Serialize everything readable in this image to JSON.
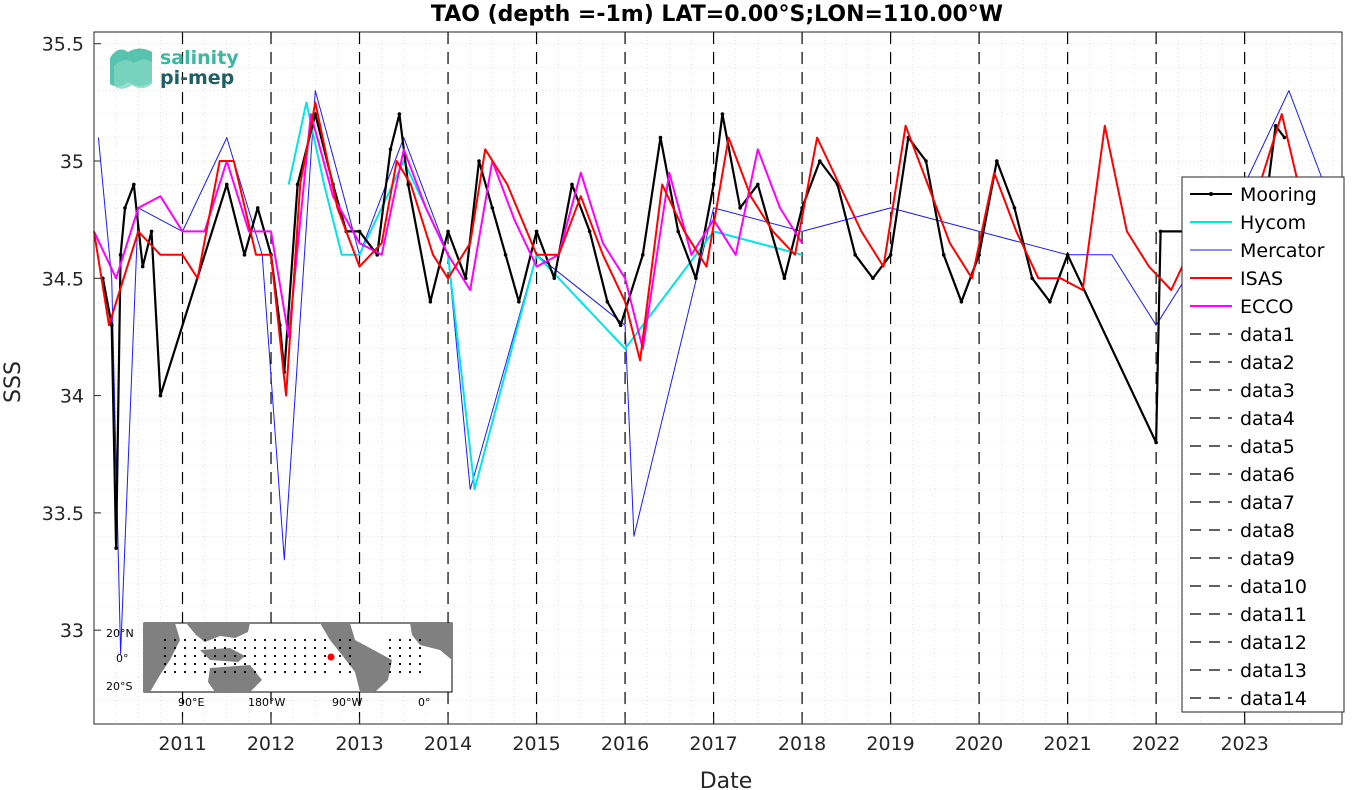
{
  "chart_data": {
    "type": "line",
    "title": "TAO (depth =-1m) LAT=0.00°S;LON=110.00°W",
    "xlabel": "Date",
    "ylabel": "SSS",
    "xlim": [
      2010.0,
      2024.1
    ],
    "ylim": [
      32.6,
      35.55
    ],
    "x_ticks": [
      2011,
      2012,
      2013,
      2014,
      2015,
      2016,
      2017,
      2018,
      2019,
      2020,
      2021,
      2022,
      2023
    ],
    "x_tick_labels": [
      "2011",
      "2012",
      "2013",
      "2014",
      "2015",
      "2016",
      "2017",
      "2018",
      "2019",
      "2020",
      "2021",
      "2022",
      "2023"
    ],
    "y_ticks": [
      33,
      33.5,
      34,
      34.5,
      35,
      35.5
    ],
    "y_tick_labels": [
      "33",
      "33.5",
      "34",
      "34.5",
      "35",
      "35.5"
    ],
    "grid": true,
    "legend_position": "right",
    "vertical_dashed_lines_at": [
      2011,
      2012,
      2013,
      2014,
      2015,
      2016,
      2017,
      2018,
      2019,
      2020,
      2021,
      2022,
      2023
    ],
    "series": [
      {
        "name": "Mooring",
        "color": "#000000",
        "style": "solid-dots",
        "x": [
          2010.1,
          2010.2,
          2010.25,
          2010.3,
          2010.35,
          2010.45,
          2010.55,
          2010.65,
          2010.75,
          2011.5,
          2011.7,
          2011.85,
          2012.0,
          2012.1,
          2012.15,
          2012.3,
          2012.5,
          2012.7,
          2012.85,
          2013.0,
          2013.2,
          2013.35,
          2013.45,
          2013.55,
          2013.8,
          2014.0,
          2014.2,
          2014.35,
          2014.5,
          2014.65,
          2014.8,
          2015.0,
          2015.2,
          2015.4,
          2015.6,
          2015.8,
          2015.95,
          2016.2,
          2016.4,
          2016.6,
          2016.8,
          2017.0,
          2017.1,
          2017.3,
          2017.5,
          2017.8,
          2018.0,
          2018.2,
          2018.4,
          2018.6,
          2018.8,
          2019.0,
          2019.2,
          2019.4,
          2019.6,
          2019.8,
          2020.0,
          2020.2,
          2020.4,
          2020.6,
          2020.8,
          2021.0,
          2022.0,
          2022.05,
          2023.2,
          2023.35,
          2023.45
        ],
        "y": [
          34.5,
          34.3,
          33.35,
          34.6,
          34.8,
          34.9,
          34.55,
          34.7,
          34.0,
          34.9,
          34.6,
          34.8,
          34.6,
          34.3,
          34.1,
          34.9,
          35.2,
          34.9,
          34.7,
          34.7,
          34.6,
          35.05,
          35.2,
          34.9,
          34.4,
          34.7,
          34.5,
          35.0,
          34.8,
          34.6,
          34.4,
          34.7,
          34.5,
          34.9,
          34.7,
          34.4,
          34.3,
          34.6,
          35.1,
          34.7,
          34.5,
          34.9,
          35.2,
          34.8,
          34.9,
          34.5,
          34.8,
          35.0,
          34.9,
          34.6,
          34.5,
          34.6,
          35.1,
          35.0,
          34.6,
          34.4,
          34.6,
          35.0,
          34.8,
          34.5,
          34.4,
          34.6,
          33.8,
          34.7,
          34.7,
          35.15,
          35.1
        ]
      },
      {
        "name": "Hycom",
        "color": "#00e5e5",
        "style": "solid",
        "x": [
          2012.2,
          2012.4,
          2012.6,
          2012.8,
          2013.0,
          2013.5,
          2014.0,
          2014.3,
          2015.0,
          2016.0,
          2017.0,
          2018.0
        ],
        "y": [
          34.9,
          35.25,
          34.9,
          34.6,
          34.6,
          35.0,
          34.6,
          33.6,
          34.6,
          34.2,
          34.7,
          34.6
        ]
      },
      {
        "name": "Mercator",
        "color": "#1a1aff",
        "style": "solid-thin",
        "x": [
          2010.05,
          2010.2,
          2010.3,
          2010.5,
          2011.0,
          2011.5,
          2011.9,
          2012.15,
          2012.5,
          2013.0,
          2013.5,
          2014.0,
          2014.25,
          2015.0,
          2016.0,
          2016.1,
          2017.0,
          2018.0,
          2019.0,
          2020.0,
          2021.0,
          2021.5,
          2022.0,
          2022.5,
          2023.0,
          2023.5,
          2023.9
        ],
        "y": [
          35.1,
          34.5,
          32.9,
          34.8,
          34.7,
          35.1,
          34.6,
          33.3,
          35.3,
          34.6,
          35.1,
          34.6,
          33.6,
          34.6,
          34.3,
          33.4,
          34.8,
          34.7,
          34.8,
          34.7,
          34.6,
          34.6,
          34.3,
          34.6,
          34.9,
          35.3,
          34.9
        ]
      },
      {
        "name": "ISAS",
        "color": "#ff0000",
        "style": "solid",
        "x": [
          2010.0,
          2010.17,
          2010.5,
          2010.75,
          2011.0,
          2011.17,
          2011.42,
          2011.58,
          2011.83,
          2012.0,
          2012.17,
          2012.33,
          2012.5,
          2012.75,
          2013.0,
          2013.25,
          2013.42,
          2013.58,
          2013.83,
          2014.0,
          2014.25,
          2014.42,
          2014.67,
          2015.0,
          2015.25,
          2015.5,
          2015.75,
          2016.0,
          2016.17,
          2016.42,
          2016.67,
          2016.92,
          2017.17,
          2017.42,
          2017.67,
          2017.92,
          2018.17,
          2018.42,
          2018.67,
          2018.92,
          2019.17,
          2019.42,
          2019.67,
          2019.92,
          2020.17,
          2020.42,
          2020.67,
          2020.92,
          2021.17,
          2021.42,
          2021.67,
          2021.92,
          2022.17,
          2022.42,
          2022.67,
          2023.17,
          2023.42,
          2023.67
        ],
        "y": [
          34.7,
          34.3,
          34.7,
          34.6,
          34.6,
          34.5,
          35.0,
          35.0,
          34.6,
          34.6,
          34.0,
          34.9,
          35.25,
          34.8,
          34.55,
          34.65,
          35.0,
          34.9,
          34.6,
          34.5,
          34.65,
          35.05,
          34.9,
          34.6,
          34.6,
          34.85,
          34.6,
          34.4,
          34.15,
          34.9,
          34.7,
          34.55,
          35.1,
          34.85,
          34.7,
          34.6,
          35.1,
          34.9,
          34.7,
          34.55,
          35.15,
          34.9,
          34.65,
          34.5,
          34.95,
          34.7,
          34.5,
          34.5,
          34.45,
          35.15,
          34.7,
          34.55,
          34.45,
          34.65,
          34.7,
          34.9,
          35.2,
          34.8
        ]
      },
      {
        "name": "ECCO",
        "color": "#ff00ff",
        "style": "solid",
        "x": [
          2010.0,
          2010.25,
          2010.5,
          2010.75,
          2011.0,
          2011.25,
          2011.5,
          2011.75,
          2012.0,
          2012.2,
          2012.45,
          2012.7,
          2013.0,
          2013.25,
          2013.5,
          2013.75,
          2014.0,
          2014.25,
          2014.5,
          2014.75,
          2015.0,
          2015.25,
          2015.5,
          2015.75,
          2016.0,
          2016.2,
          2016.5,
          2016.75,
          2017.0,
          2017.25,
          2017.5,
          2017.75,
          2018.0
        ],
        "y": [
          34.7,
          34.5,
          34.8,
          34.85,
          34.7,
          34.7,
          35.0,
          34.7,
          34.7,
          34.25,
          35.2,
          34.85,
          34.65,
          34.6,
          35.05,
          34.8,
          34.6,
          34.45,
          35.0,
          34.75,
          34.55,
          34.6,
          34.95,
          34.65,
          34.5,
          34.2,
          34.95,
          34.6,
          34.75,
          34.6,
          35.05,
          34.8,
          34.65
        ]
      }
    ],
    "legend_entries": [
      "Mooring",
      "Hycom",
      "Mercator",
      "ISAS",
      "ECCO",
      "data1",
      "data2",
      "data3",
      "data4",
      "data5",
      "data6",
      "data7",
      "data8",
      "data9",
      "data10",
      "data11",
      "data12",
      "data13",
      "data14"
    ],
    "inset_map": {
      "y_labels": [
        "20°N",
        "0°",
        "20°S"
      ],
      "x_labels": [
        "90°E",
        "180°W",
        "90°W",
        "0°"
      ],
      "marker_color": "#ff0000"
    },
    "logo": {
      "line1": "salinity",
      "line2": "pi-mep"
    }
  }
}
